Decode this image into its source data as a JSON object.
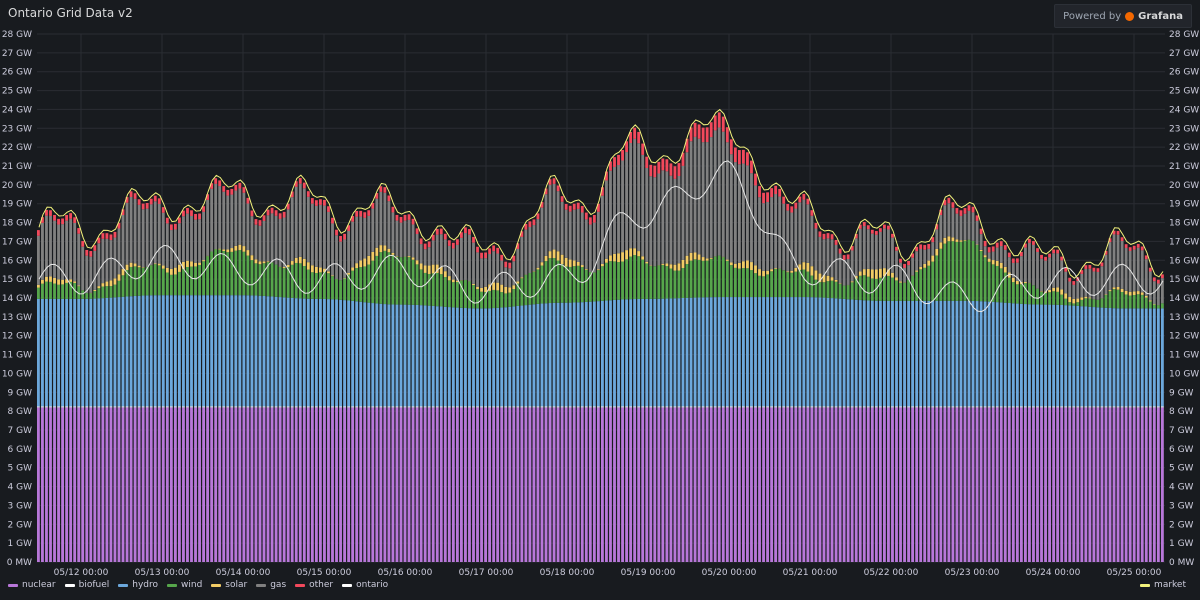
{
  "panel": {
    "title": "Ontario Grid Data v2",
    "powered_by": "Powered by",
    "brand": "Grafana"
  },
  "chart_data": {
    "type": "bar",
    "stacked": true,
    "x_tick_labels": [
      "05/12 00:00",
      "05/13 00:00",
      "05/14 00:00",
      "05/15 00:00",
      "05/16 00:00",
      "05/17 00:00",
      "05/18 00:00",
      "05/19 00:00",
      "05/20 00:00",
      "05/21 00:00",
      "05/22 00:00",
      "05/23 00:00",
      "05/24 00:00",
      "05/25 00:00"
    ],
    "y_tick_labels": [
      "0 MW",
      "1 GW",
      "2 GW",
      "3 GW",
      "4 GW",
      "5 GW",
      "6 GW",
      "7 GW",
      "8 GW",
      "9 GW",
      "10 GW",
      "11 GW",
      "12 GW",
      "13 GW",
      "14 GW",
      "15 GW",
      "16 GW",
      "17 GW",
      "18 GW",
      "19 GW",
      "20 GW",
      "21 GW",
      "22 GW",
      "23 GW",
      "24 GW",
      "25 GW",
      "26 GW",
      "27 GW",
      "28 GW"
    ],
    "ylim": [
      0,
      28
    ],
    "y_unit": "GW",
    "days": [
      "05/12",
      "05/13",
      "05/14",
      "05/15",
      "05/16",
      "05/17",
      "05/18",
      "05/19",
      "05/20",
      "05/21",
      "05/22",
      "05/23",
      "05/24",
      "05/25"
    ],
    "grid": true,
    "legend_placement": "bottom-left",
    "series": [
      {
        "name": "nuclear",
        "color": "#b877d9",
        "values_by_day": [
          8.2,
          8.2,
          8.2,
          8.2,
          8.2,
          8.2,
          8.2,
          8.2,
          8.2,
          8.2,
          8.2,
          8.2,
          8.2,
          8.2
        ]
      },
      {
        "name": "biofuel",
        "color": "#ffffff",
        "values_by_day": [
          0.05,
          0.05,
          0.05,
          0.05,
          0.05,
          0.05,
          0.05,
          0.05,
          0.05,
          0.05,
          0.05,
          0.05,
          0.05,
          0.05
        ]
      },
      {
        "name": "hydro",
        "color": "#6ca8dc",
        "values_by_day": [
          5.7,
          5.9,
          5.9,
          5.7,
          5.4,
          5.2,
          5.5,
          5.7,
          5.8,
          5.8,
          5.6,
          5.6,
          5.4,
          5.2
        ]
      },
      {
        "name": "wind",
        "color": "#56a64b",
        "values_by_day": [
          0.6,
          1.4,
          2.2,
          1.3,
          2.5,
          0.9,
          2.0,
          1.9,
          1.8,
          1.1,
          1.0,
          3.0,
          0.5,
          0.6
        ]
      },
      {
        "name": "solar",
        "color": "#f2cc66",
        "values_by_day": [
          0.3,
          0.4,
          0.3,
          0.4,
          0.5,
          0.4,
          0.5,
          0.5,
          0.4,
          0.5,
          0.5,
          0.3,
          0.3,
          0.2
        ]
      },
      {
        "name": "gas",
        "color": "#808080",
        "values_by_day": [
          2.6,
          2.8,
          2.6,
          3.1,
          1.8,
          1.6,
          2.7,
          5.0,
          6.0,
          2.6,
          1.5,
          1.0,
          1.4,
          2.0
        ]
      },
      {
        "name": "other",
        "color": "#f2495c",
        "values_by_day": [
          0.3,
          0.3,
          0.3,
          0.3,
          0.3,
          0.3,
          0.3,
          0.6,
          0.8,
          0.3,
          0.2,
          0.3,
          0.2,
          0.2
        ]
      }
    ],
    "lines": [
      {
        "name": "ontario",
        "color": "#e6e6e6",
        "values_by_day": [
          15.0,
          16.0,
          15.5,
          15.0,
          15.5,
          14.5,
          15.0,
          18.5,
          20.5,
          15.5,
          15.0,
          14.0,
          14.8,
          15.0
        ]
      },
      {
        "name": "market",
        "color": "#f2f27c",
        "values_by_day": [
          17.8,
          18.8,
          19.3,
          19.4,
          18.5,
          15.8,
          19.3,
          22.4,
          24.0,
          18.8,
          17.8,
          18.3,
          16.3,
          17.0
        ]
      }
    ]
  },
  "legend": {
    "left": [
      {
        "label": "nuclear",
        "color": "#b877d9"
      },
      {
        "label": "biofuel",
        "color": "#ffffff"
      },
      {
        "label": "hydro",
        "color": "#6ca8dc"
      },
      {
        "label": "wind",
        "color": "#56a64b"
      },
      {
        "label": "solar",
        "color": "#f2cc66"
      },
      {
        "label": "gas",
        "color": "#808080"
      },
      {
        "label": "other",
        "color": "#f2495c"
      },
      {
        "label": "ontario",
        "color": "#ffffff"
      }
    ],
    "right": [
      {
        "label": "market",
        "color": "#f2f27c"
      }
    ]
  }
}
